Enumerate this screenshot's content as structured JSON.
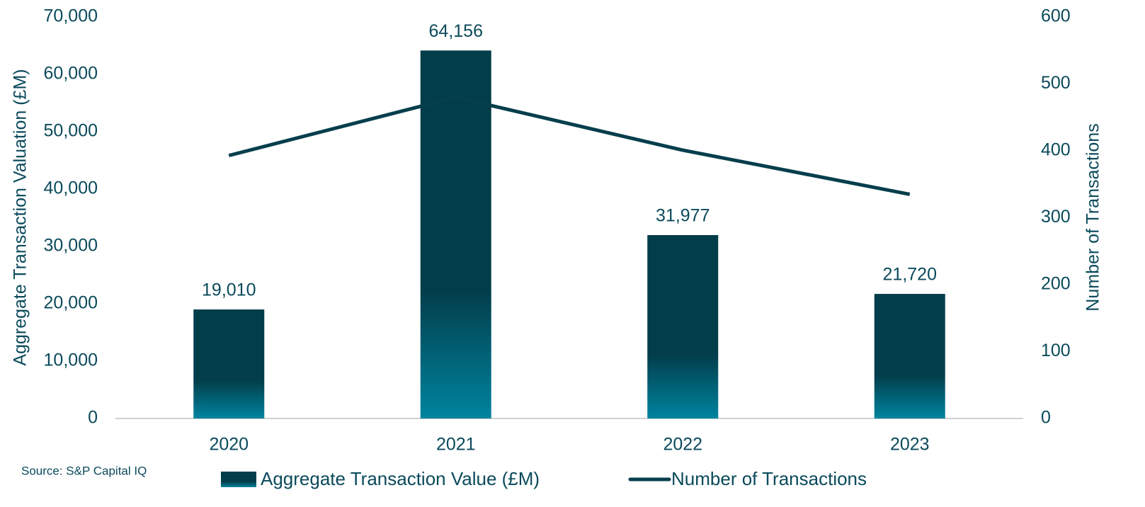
{
  "chart_data": {
    "type": "bar",
    "categories": [
      "2020",
      "2021",
      "2022",
      "2023"
    ],
    "series": [
      {
        "name": "Aggregate Transaction Value (£M)",
        "type": "bar",
        "color": "#023d4a",
        "values": [
          19010,
          64156,
          31977,
          21720
        ],
        "value_labels": [
          "19,010",
          "64,156",
          "31,977",
          "21,720"
        ]
      },
      {
        "name": "Number of Transactions",
        "type": "line",
        "axis": "y2",
        "color": "#063e4c",
        "values": [
          393,
          480,
          401,
          335
        ]
      }
    ],
    "ylabel": "Aggregate Transaction Valuation (£M)",
    "y2label": "Number of Transactions",
    "ylim": [
      0,
      70000
    ],
    "yticks": [
      0,
      {
        "value": 10000,
        "label": "10,000"
      },
      {
        "value": 20000,
        "label": "20,000"
      },
      {
        "value": 30000,
        "label": "30,000"
      },
      {
        "value": 40000,
        "label": "40,000"
      },
      {
        "value": 50000,
        "label": "50,000"
      },
      {
        "value": 60000,
        "label": "60,000"
      },
      {
        "value": 70000,
        "label": "70,000"
      }
    ],
    "y2lim": [
      0,
      600
    ],
    "y2ticks": [
      0,
      100,
      200,
      300,
      400,
      500,
      600
    ],
    "source": "Source: S&P Capital IQ",
    "legend": "bottom"
  }
}
